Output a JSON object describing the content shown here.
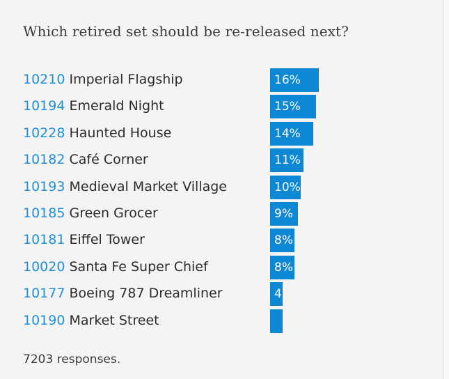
{
  "poll": {
    "title": "Which retired set should be re-released next?",
    "responses_text": "7203 responses."
  },
  "chart_data": {
    "type": "bar",
    "title": "Which retired set should be re-released next?",
    "categories": [
      "10210 Imperial Flagship",
      "10194 Emerald Night",
      "10228 Haunted House",
      "10182 Café Corner",
      "10193 Medieval Market Village",
      "10185 Green Grocer",
      "10181 Eiffel Tower",
      "10020 Santa Fe Super Chief",
      "10177 Boeing 787 Dreamliner",
      "10190 Market Street"
    ],
    "items": [
      {
        "code": "10210",
        "name": "Imperial Flagship",
        "value": 16,
        "label": "16%"
      },
      {
        "code": "10194",
        "name": "Emerald Night",
        "value": 15,
        "label": "15%"
      },
      {
        "code": "10228",
        "name": "Haunted House",
        "value": 14,
        "label": "14%"
      },
      {
        "code": "10182",
        "name": "Café Corner",
        "value": 11,
        "label": "11%"
      },
      {
        "code": "10193",
        "name": "Medieval Market Village",
        "value": 10,
        "label": "10%"
      },
      {
        "code": "10185",
        "name": "Green Grocer",
        "value": 9,
        "label": "9%"
      },
      {
        "code": "10181",
        "name": "Eiffel Tower",
        "value": 8,
        "label": "8%"
      },
      {
        "code": "10020",
        "name": "Santa Fe Super Chief",
        "value": 8,
        "label": "8%"
      },
      {
        "code": "10177",
        "name": "Boeing 787 Dreamliner",
        "value": 4,
        "label": "4"
      },
      {
        "code": "10190",
        "name": "Market Street",
        "value": 4,
        "label": ""
      }
    ],
    "values": [
      16,
      15,
      14,
      11,
      10,
      9,
      8,
      8,
      4,
      4
    ],
    "colors": {
      "bar": "#0e88d4",
      "code_text": "#1f8fd6",
      "bar_label": "#ffffff"
    }
  }
}
